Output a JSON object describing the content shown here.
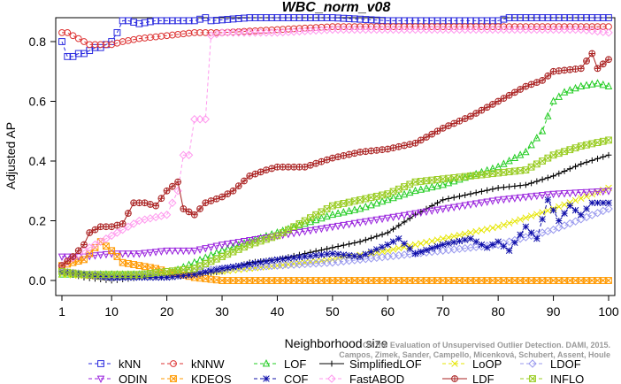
{
  "chart_data": {
    "type": "line",
    "title": "WBC_norm_v08",
    "xlabel": "Neighborhood size",
    "ylabel": "Adjusted AP",
    "xlim": [
      1,
      100
    ],
    "ylim": [
      0,
      0.88
    ],
    "xticks": [
      1,
      10,
      20,
      30,
      40,
      50,
      60,
      70,
      80,
      90,
      100
    ],
    "yticks": [
      0.0,
      0.2,
      0.4,
      0.6,
      0.8
    ],
    "ytick_labels": [
      "0.0",
      "0.2",
      "0.4",
      "0.6",
      "0.8"
    ],
    "grid": false,
    "legend_position": "bottom",
    "watermark": [
      "Campos, Zimek, Sander, Campello, Micenková, Schubert, Assent, Houle",
      "On the Evaluation of Unsupervised Outlier Detection. DAMI, 2015."
    ],
    "series": [
      {
        "name": "kNN",
        "color": "#2a2adf",
        "marker": "square",
        "dash": "4,3",
        "points": [
          [
            1,
            0.8
          ],
          [
            2,
            0.75
          ],
          [
            3,
            0.75
          ],
          [
            4,
            0.76
          ],
          [
            5,
            0.76
          ],
          [
            6,
            0.77
          ],
          [
            7,
            0.78
          ],
          [
            8,
            0.78
          ],
          [
            9,
            0.79
          ],
          [
            10,
            0.8
          ],
          [
            11,
            0.83
          ],
          [
            12,
            0.87
          ],
          [
            13,
            0.87
          ],
          [
            15,
            0.86
          ],
          [
            18,
            0.87
          ],
          [
            20,
            0.87
          ],
          [
            25,
            0.87
          ],
          [
            27,
            0.88
          ],
          [
            28,
            0.87
          ],
          [
            35,
            0.88
          ],
          [
            50,
            0.88
          ],
          [
            60,
            0.87
          ],
          [
            70,
            0.87
          ],
          [
            80,
            0.87
          ],
          [
            82,
            0.88
          ],
          [
            90,
            0.88
          ],
          [
            100,
            0.88
          ]
        ]
      },
      {
        "name": "kNNW",
        "color": "#dd3333",
        "marker": "circle",
        "dash": "4,3",
        "points": [
          [
            1,
            0.83
          ],
          [
            2,
            0.83
          ],
          [
            3,
            0.82
          ],
          [
            4,
            0.81
          ],
          [
            5,
            0.8
          ],
          [
            6,
            0.79
          ],
          [
            8,
            0.79
          ],
          [
            10,
            0.79
          ],
          [
            12,
            0.8
          ],
          [
            15,
            0.81
          ],
          [
            20,
            0.82
          ],
          [
            25,
            0.83
          ],
          [
            30,
            0.83
          ],
          [
            40,
            0.84
          ],
          [
            50,
            0.85
          ],
          [
            60,
            0.85
          ],
          [
            70,
            0.85
          ],
          [
            80,
            0.85
          ],
          [
            90,
            0.85
          ],
          [
            100,
            0.85
          ]
        ]
      },
      {
        "name": "LOF",
        "color": "#22cc22",
        "marker": "triangle-up",
        "dash": "4,3",
        "points": [
          [
            1,
            0.02
          ],
          [
            5,
            0.02
          ],
          [
            10,
            0.02
          ],
          [
            15,
            0.02
          ],
          [
            20,
            0.02
          ],
          [
            25,
            0.06
          ],
          [
            30,
            0.1
          ],
          [
            35,
            0.13
          ],
          [
            40,
            0.16
          ],
          [
            45,
            0.19
          ],
          [
            50,
            0.22
          ],
          [
            55,
            0.24
          ],
          [
            60,
            0.27
          ],
          [
            65,
            0.3
          ],
          [
            70,
            0.32
          ],
          [
            75,
            0.35
          ],
          [
            80,
            0.38
          ],
          [
            85,
            0.43
          ],
          [
            88,
            0.5
          ],
          [
            90,
            0.6
          ],
          [
            92,
            0.63
          ],
          [
            95,
            0.65
          ],
          [
            98,
            0.66
          ],
          [
            100,
            0.65
          ]
        ]
      },
      {
        "name": "SimplifiedLOF",
        "color": "#000000",
        "marker": "plus",
        "dash": "",
        "points": [
          [
            1,
            0.03
          ],
          [
            5,
            0.01
          ],
          [
            10,
            0.0
          ],
          [
            15,
            0.01
          ],
          [
            20,
            0.01
          ],
          [
            25,
            0.02
          ],
          [
            30,
            0.03
          ],
          [
            35,
            0.06
          ],
          [
            40,
            0.07
          ],
          [
            45,
            0.09
          ],
          [
            50,
            0.11
          ],
          [
            55,
            0.13
          ],
          [
            60,
            0.16
          ],
          [
            65,
            0.22
          ],
          [
            70,
            0.27
          ],
          [
            75,
            0.29
          ],
          [
            80,
            0.31
          ],
          [
            85,
            0.32
          ],
          [
            90,
            0.35
          ],
          [
            95,
            0.39
          ],
          [
            100,
            0.42
          ]
        ]
      },
      {
        "name": "LoOP",
        "color": "#e6e600",
        "marker": "x",
        "dash": "4,3",
        "points": [
          [
            1,
            0.02
          ],
          [
            10,
            0.01
          ],
          [
            20,
            0.02
          ],
          [
            30,
            0.03
          ],
          [
            40,
            0.05
          ],
          [
            50,
            0.07
          ],
          [
            60,
            0.1
          ],
          [
            70,
            0.14
          ],
          [
            80,
            0.18
          ],
          [
            90,
            0.24
          ],
          [
            100,
            0.31
          ]
        ]
      },
      {
        "name": "LDOF",
        "color": "#9999ee",
        "marker": "diamond",
        "dash": "4,3",
        "points": [
          [
            1,
            0.03
          ],
          [
            10,
            0.01
          ],
          [
            20,
            0.02
          ],
          [
            30,
            0.04
          ],
          [
            40,
            0.05
          ],
          [
            50,
            0.06
          ],
          [
            60,
            0.08
          ],
          [
            70,
            0.1
          ],
          [
            80,
            0.12
          ],
          [
            90,
            0.17
          ],
          [
            100,
            0.24
          ]
        ]
      },
      {
        "name": "ODIN",
        "color": "#9922dd",
        "marker": "triangle-down",
        "dash": "4,3",
        "points": [
          [
            1,
            0.08
          ],
          [
            5,
            0.08
          ],
          [
            10,
            0.09
          ],
          [
            15,
            0.09
          ],
          [
            20,
            0.1
          ],
          [
            25,
            0.1
          ],
          [
            30,
            0.12
          ],
          [
            40,
            0.15
          ],
          [
            50,
            0.18
          ],
          [
            60,
            0.21
          ],
          [
            70,
            0.24
          ],
          [
            80,
            0.27
          ],
          [
            90,
            0.29
          ],
          [
            100,
            0.3
          ]
        ]
      },
      {
        "name": "KDEOS",
        "color": "#ff9900",
        "marker": "square-x",
        "dash": "4,3",
        "points": [
          [
            1,
            0.05
          ],
          [
            5,
            0.07
          ],
          [
            8,
            0.13
          ],
          [
            10,
            0.1
          ],
          [
            12,
            0.06
          ],
          [
            15,
            0.05
          ],
          [
            18,
            0.04
          ],
          [
            20,
            0.03
          ],
          [
            25,
            0.01
          ],
          [
            30,
            0.0
          ],
          [
            40,
            0.0
          ],
          [
            60,
            0.0
          ],
          [
            80,
            0.0
          ],
          [
            100,
            0.0
          ]
        ]
      },
      {
        "name": "COF",
        "color": "#1010aa",
        "marker": "asterisk",
        "dash": "4,3",
        "points": [
          [
            1,
            0.03
          ],
          [
            10,
            0.01
          ],
          [
            20,
            0.01
          ],
          [
            25,
            0.02
          ],
          [
            30,
            0.04
          ],
          [
            40,
            0.07
          ],
          [
            50,
            0.09
          ],
          [
            55,
            0.08
          ],
          [
            60,
            0.12
          ],
          [
            62,
            0.14
          ],
          [
            65,
            0.09
          ],
          [
            70,
            0.12
          ],
          [
            75,
            0.14
          ],
          [
            78,
            0.11
          ],
          [
            80,
            0.13
          ],
          [
            82,
            0.1
          ],
          [
            85,
            0.18
          ],
          [
            87,
            0.14
          ],
          [
            89,
            0.27
          ],
          [
            91,
            0.2
          ],
          [
            93,
            0.25
          ],
          [
            95,
            0.22
          ],
          [
            97,
            0.26
          ],
          [
            100,
            0.26
          ]
        ]
      },
      {
        "name": "FastABOD",
        "color": "#ff99ee",
        "marker": "diamond",
        "dash": "4,3",
        "points": [
          [
            1,
            0.05
          ],
          [
            5,
            0.1
          ],
          [
            10,
            0.15
          ],
          [
            15,
            0.2
          ],
          [
            20,
            0.22
          ],
          [
            22,
            0.3
          ],
          [
            23,
            0.42
          ],
          [
            24,
            0.42
          ],
          [
            25,
            0.54
          ],
          [
            26,
            0.54
          ],
          [
            27,
            0.54
          ],
          [
            28,
            0.82
          ],
          [
            30,
            0.83
          ],
          [
            40,
            0.83
          ],
          [
            50,
            0.84
          ],
          [
            60,
            0.84
          ],
          [
            70,
            0.84
          ],
          [
            80,
            0.84
          ],
          [
            90,
            0.84
          ],
          [
            95,
            0.84
          ],
          [
            100,
            0.83
          ]
        ]
      },
      {
        "name": "LDF",
        "color": "#aa2222",
        "marker": "circle-plus",
        "dash": "",
        "points": [
          [
            1,
            0.05
          ],
          [
            3,
            0.08
          ],
          [
            5,
            0.12
          ],
          [
            6,
            0.16
          ],
          [
            8,
            0.18
          ],
          [
            10,
            0.18
          ],
          [
            12,
            0.19
          ],
          [
            14,
            0.26
          ],
          [
            16,
            0.26
          ],
          [
            18,
            0.25
          ],
          [
            20,
            0.3
          ],
          [
            22,
            0.33
          ],
          [
            23,
            0.24
          ],
          [
            25,
            0.22
          ],
          [
            27,
            0.26
          ],
          [
            30,
            0.28
          ],
          [
            32,
            0.3
          ],
          [
            35,
            0.35
          ],
          [
            38,
            0.37
          ],
          [
            40,
            0.38
          ],
          [
            45,
            0.38
          ],
          [
            50,
            0.41
          ],
          [
            55,
            0.43
          ],
          [
            60,
            0.44
          ],
          [
            65,
            0.46
          ],
          [
            70,
            0.51
          ],
          [
            75,
            0.55
          ],
          [
            80,
            0.6
          ],
          [
            85,
            0.65
          ],
          [
            88,
            0.67
          ],
          [
            90,
            0.7
          ],
          [
            95,
            0.71
          ],
          [
            97,
            0.76
          ],
          [
            98,
            0.71
          ],
          [
            100,
            0.74
          ]
        ]
      },
      {
        "name": "INFLO",
        "color": "#99cc22",
        "marker": "square-x",
        "dash": "4,3",
        "points": [
          [
            1,
            0.03
          ],
          [
            5,
            0.02
          ],
          [
            10,
            0.02
          ],
          [
            15,
            0.02
          ],
          [
            20,
            0.03
          ],
          [
            25,
            0.04
          ],
          [
            30,
            0.08
          ],
          [
            35,
            0.12
          ],
          [
            40,
            0.15
          ],
          [
            45,
            0.2
          ],
          [
            50,
            0.25
          ],
          [
            55,
            0.27
          ],
          [
            60,
            0.29
          ],
          [
            65,
            0.33
          ],
          [
            70,
            0.34
          ],
          [
            75,
            0.35
          ],
          [
            80,
            0.36
          ],
          [
            85,
            0.37
          ],
          [
            90,
            0.42
          ],
          [
            95,
            0.45
          ],
          [
            100,
            0.47
          ]
        ]
      }
    ]
  }
}
